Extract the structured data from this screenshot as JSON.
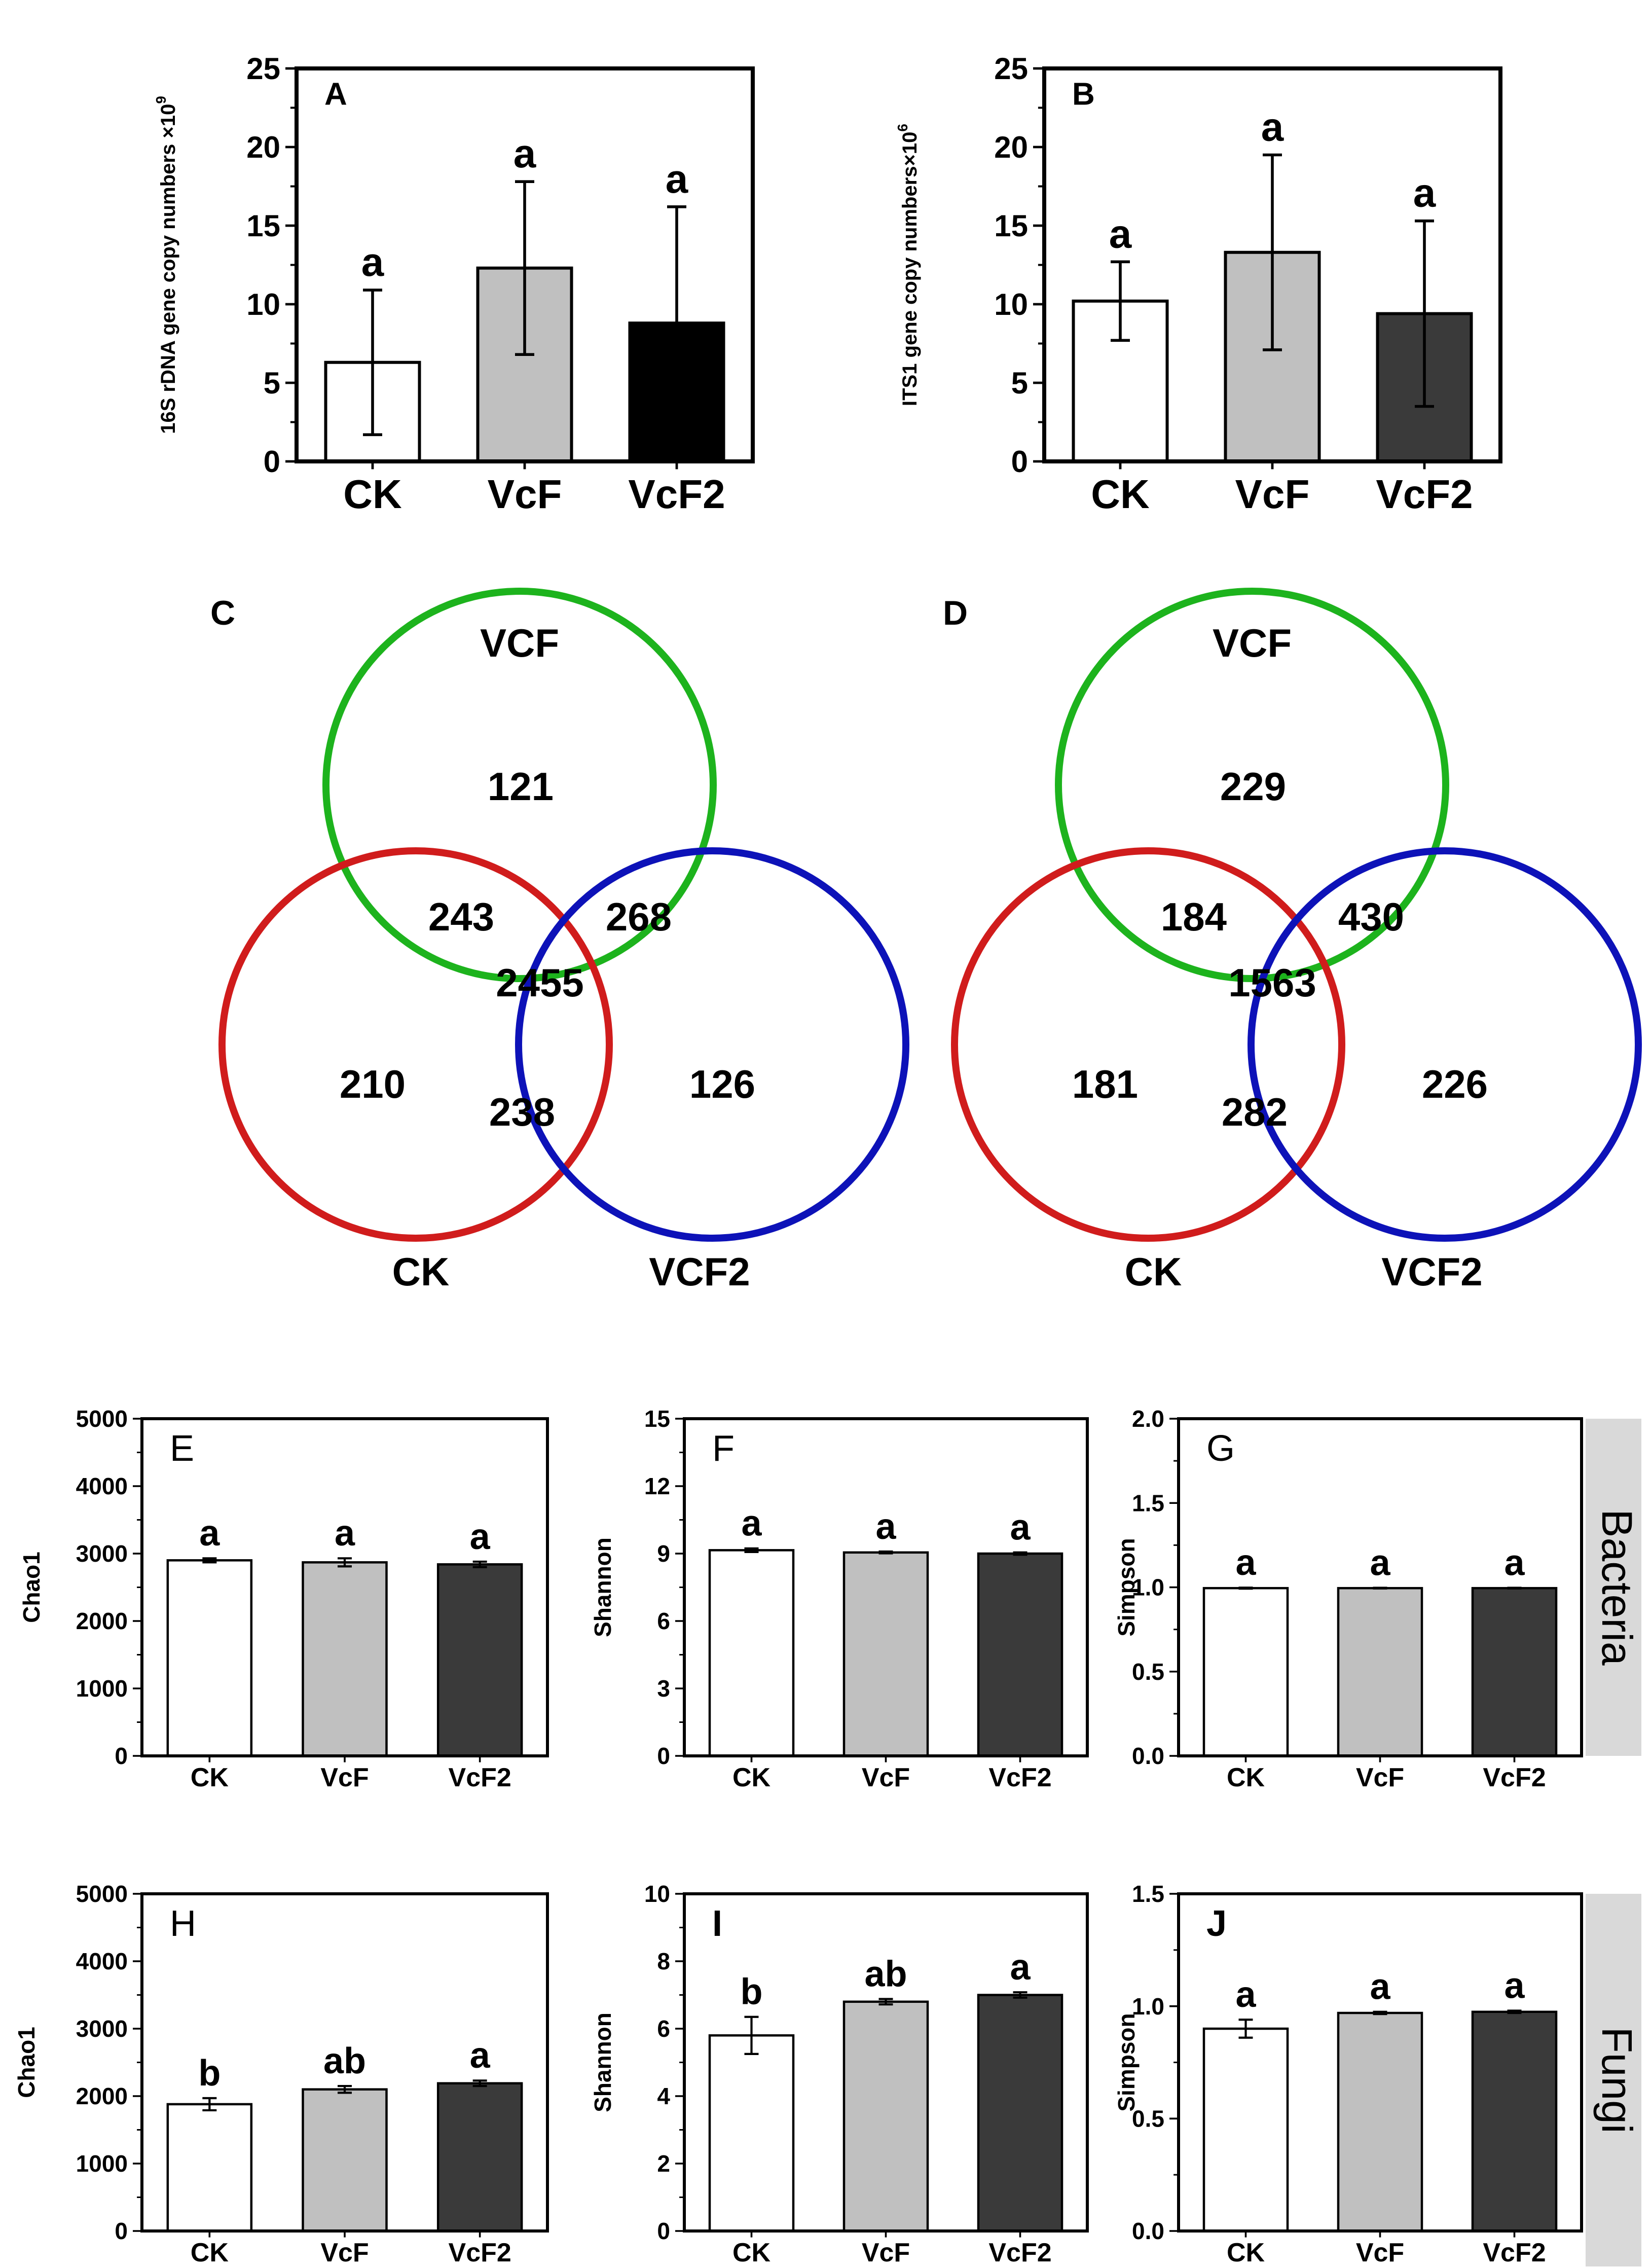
{
  "colors": {
    "white": "#ffffff",
    "light_gray": "#c0c0c0",
    "black": "#000000",
    "dark_gray": "#3a3a3a",
    "venn_green": "#1db31d",
    "venn_red": "#d01c1c",
    "venn_blue": "#0d12b8",
    "strip_bg": "#d9d9d9"
  },
  "chart_data": [
    {
      "id": "A",
      "type": "bar",
      "panel_label": "A",
      "categories": [
        "CK",
        "VcF",
        "VcF2"
      ],
      "values": [
        6.3,
        12.3,
        8.8
      ],
      "errors": [
        4.6,
        5.5,
        7.4
      ],
      "letters": [
        "a",
        "a",
        "a"
      ],
      "fills": [
        "#ffffff",
        "#c0c0c0",
        "#000000"
      ],
      "ylabel": "16S rDNA gene copy numbers ×10",
      "ylabel_sup": "9",
      "ylim": [
        0,
        25
      ],
      "yticks": [
        "0",
        "5",
        "10",
        "15",
        "20",
        "25"
      ]
    },
    {
      "id": "B",
      "type": "bar",
      "panel_label": "B",
      "categories": [
        "CK",
        "VcF",
        "VcF2"
      ],
      "values": [
        10.2,
        13.3,
        9.4
      ],
      "errors": [
        2.5,
        6.2,
        5.9
      ],
      "letters": [
        "a",
        "a",
        "a"
      ],
      "fills": [
        "#ffffff",
        "#c0c0c0",
        "#3a3a3a"
      ],
      "ylabel": "ITS1 gene copy numbers×10",
      "ylabel_sup": "6",
      "ylim": [
        0,
        25
      ],
      "yticks": [
        "0",
        "5",
        "10",
        "15",
        "20",
        "25"
      ]
    },
    {
      "id": "C",
      "type": "venn",
      "panel_label": "C",
      "sets": [
        "VCF",
        "CK",
        "VCF2"
      ],
      "regions": {
        "vcf_only": "121",
        "ck_vcf": "243",
        "vcf_vcf2": "268",
        "all": "2455",
        "ck_only": "210",
        "ck_vcf2": "238",
        "vcf2_only": "126"
      }
    },
    {
      "id": "D",
      "type": "venn",
      "panel_label": "D",
      "sets": [
        "VCF",
        "CK",
        "VCF2"
      ],
      "regions": {
        "vcf_only": "229",
        "ck_vcf": "184",
        "vcf_vcf2": "430",
        "all": "1563",
        "ck_only": "181",
        "ck_vcf2": "282",
        "vcf2_only": "226"
      }
    },
    {
      "id": "E",
      "type": "bar",
      "panel_label": "E",
      "group": "Bacteria",
      "categories": [
        "CK",
        "VcF",
        "VcF2"
      ],
      "values": [
        2900,
        2870,
        2840
      ],
      "errors": [
        30,
        60,
        40
      ],
      "letters": [
        "a",
        "a",
        "a"
      ],
      "fills": [
        "#ffffff",
        "#c0c0c0",
        "#3a3a3a"
      ],
      "ylabel": "Chao1",
      "ylim": [
        0,
        5000
      ],
      "yticks": [
        "0",
        "1000",
        "2000",
        "3000",
        "4000",
        "5000"
      ]
    },
    {
      "id": "F",
      "type": "bar",
      "panel_label": "F",
      "group": "Bacteria",
      "categories": [
        "CK",
        "VcF",
        "VcF2"
      ],
      "values": [
        9.15,
        9.05,
        9.0
      ],
      "errors": [
        0.08,
        0.04,
        0.05
      ],
      "letters": [
        "a",
        "a",
        "a"
      ],
      "fills": [
        "#ffffff",
        "#c0c0c0",
        "#3a3a3a"
      ],
      "ylabel": "Shannon",
      "ylim": [
        0,
        15
      ],
      "yticks": [
        "0",
        "3",
        "6",
        "9",
        "12",
        "15"
      ]
    },
    {
      "id": "G",
      "type": "bar",
      "panel_label": "G",
      "group": "Bacteria",
      "categories": [
        "CK",
        "VcF",
        "VcF2"
      ],
      "values": [
        0.995,
        0.995,
        0.995
      ],
      "errors": [
        0.003,
        0.002,
        0.002
      ],
      "letters": [
        "a",
        "a",
        "a"
      ],
      "fills": [
        "#ffffff",
        "#c0c0c0",
        "#3a3a3a"
      ],
      "ylabel": "Simpson",
      "ylim": [
        0,
        2.0
      ],
      "yticks": [
        "0.0",
        "0.5",
        "1.0",
        "1.5",
        "2.0"
      ]
    },
    {
      "id": "H",
      "type": "bar",
      "panel_label": "H",
      "group": "Fungi",
      "categories": [
        "CK",
        "VcF",
        "VcF2"
      ],
      "values": [
        1880,
        2100,
        2190
      ],
      "errors": [
        90,
        50,
        40
      ],
      "letters": [
        "b",
        "ab",
        "a"
      ],
      "fills": [
        "#ffffff",
        "#c0c0c0",
        "#3a3a3a"
      ],
      "ylabel": "Chao1",
      "ylim": [
        0,
        5000
      ],
      "yticks": [
        "0",
        "1000",
        "2000",
        "3000",
        "4000",
        "5000"
      ]
    },
    {
      "id": "I",
      "type": "bar",
      "panel_label": "I",
      "group": "Fungi",
      "categories": [
        "CK",
        "VcF",
        "VcF2"
      ],
      "values": [
        5.8,
        6.8,
        7.0
      ],
      "errors": [
        0.55,
        0.08,
        0.08
      ],
      "letters": [
        "b",
        "ab",
        "a"
      ],
      "fills": [
        "#ffffff",
        "#c0c0c0",
        "#3a3a3a"
      ],
      "ylabel": "Shannon",
      "ylim": [
        0,
        10
      ],
      "yticks": [
        "0",
        "2",
        "4",
        "6",
        "8",
        "10"
      ]
    },
    {
      "id": "J",
      "type": "bar",
      "panel_label": "J",
      "group": "Fungi",
      "categories": [
        "CK",
        "VcF",
        "VcF2"
      ],
      "values": [
        0.9,
        0.97,
        0.975
      ],
      "errors": [
        0.04,
        0.005,
        0.005
      ],
      "letters": [
        "a",
        "a",
        "a"
      ],
      "fills": [
        "#ffffff",
        "#c0c0c0",
        "#3a3a3a"
      ],
      "ylabel": "Simpson",
      "ylim": [
        0,
        1.5
      ],
      "yticks": [
        "0.0",
        "0.5",
        "1.0",
        "1.5"
      ]
    }
  ],
  "strips": {
    "bacteria": "Bacteria",
    "fungi": "Fungi"
  }
}
